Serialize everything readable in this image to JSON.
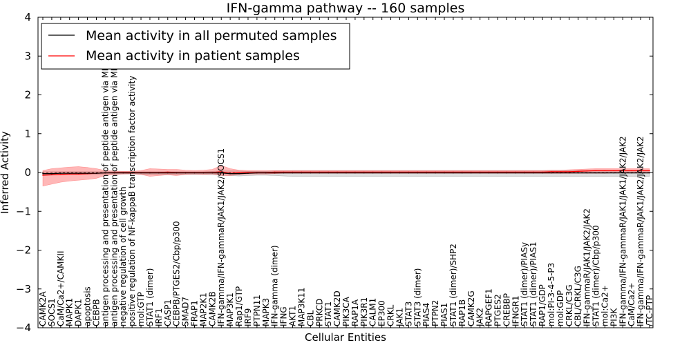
{
  "chart_data": {
    "type": "line",
    "title": "IFN-gamma pathway -- 160 samples",
    "xlabel": "Cellular Entities",
    "ylabel": "Inferred Activity",
    "ylim": [
      -4,
      4
    ],
    "yticks": [
      -4,
      -3,
      -2,
      -1,
      0,
      1,
      2,
      3,
      4
    ],
    "ytick_labels": [
      "−4",
      "−3",
      "−2",
      "−1",
      "0",
      "1",
      "2",
      "3",
      "4"
    ],
    "legend_position": "top-left",
    "categories": [
      "CAMK2A",
      "SOCS1",
      "CaM/Ca2+/CAMKII",
      "MAPK1",
      "DAPK1",
      "apoptosis",
      "CEBPB",
      "antigen processing and presentation of peptide antigen via MHC class I",
      "antigen processing and presentation of peptide antigen via MHC class II",
      "negative regulation of cell growth",
      "positive regulation of NF-kappaB transcription factor activity",
      "mol:GTP",
      "STAT1 (dimer)",
      "IRF1",
      "CASP1",
      "CEBPB/PTGES2/Cbp/p300",
      "SMAD7",
      "FRAP1",
      "MAP2K1",
      "CAMK2B",
      "IFN-gamma/IFN-gammaR/JAK1/JAK2/SOCS1",
      "MAP3K1",
      "Rap1/GTP",
      "IRF9",
      "PTPN11",
      "MAPK3",
      "IFN-gamma (dimer)",
      "IFNG",
      "AKT1",
      "MAP3K11",
      "CBL",
      "PRKCD",
      "STAT1",
      "CAMK2D",
      "PIK3CA",
      "RAP1A",
      "PIK3R1",
      "CALM1",
      "EP300",
      "CRKL",
      "JAK1",
      "STAT3",
      "STAT3 (dimer)",
      "PIAS4",
      "PTPN2",
      "PIAS1",
      "STAT1 (dimer)/SHP2",
      "RAP1B",
      "CAMK2G",
      "JAK2",
      "RAPGEF1",
      "PTGES2",
      "CREBBP",
      "IFNGR1",
      "STAT1 (dimer)/PIASy",
      "STAT1 (dimer)/PIAS1",
      "RAP1/GDP",
      "mol:PI-3-4-5-P3",
      "mol:GDP",
      "CRKL/C3G",
      "CBL/CRKL/C3G",
      "IFN-gammaR/JAK1/JAK2/JAK2",
      "STAT1 (dimer)/Cbp/p300",
      "mol:Ca2+",
      "PI3K",
      "IFN-gamma/IFN-gammaR/JAK1/JAK1/JAK2/JAK2",
      "CaM/Ca2+",
      "IFN-gamma/IFN-gammaR/JAK1/JAK2/JAK2/JAK2",
      "/TC-PTP"
    ],
    "series": [
      {
        "name": "Mean activity in all permuted samples",
        "color": "#000000",
        "values": [
          -0.03,
          -0.03,
          -0.02,
          -0.02,
          -0.02,
          -0.02,
          -0.02,
          -0.01,
          -0.01,
          -0.01,
          -0.01,
          -0.01,
          -0.01,
          -0.01,
          -0.01,
          -0.01,
          -0.01,
          -0.01,
          -0.01,
          -0.01,
          -0.01,
          -0.03,
          -0.03,
          -0.02,
          -0.01,
          -0.01,
          -0.01,
          -0.01,
          -0.01,
          -0.01,
          -0.01,
          -0.01,
          -0.01,
          -0.01,
          -0.01,
          -0.01,
          -0.01,
          -0.01,
          -0.01,
          -0.01,
          -0.01,
          -0.01,
          -0.01,
          -0.01,
          -0.01,
          -0.01,
          -0.01,
          -0.01,
          -0.01,
          -0.01,
          -0.01,
          -0.01,
          -0.01,
          -0.01,
          -0.01,
          -0.01,
          -0.01,
          -0.01,
          -0.01,
          -0.01,
          -0.01,
          -0.01,
          -0.01,
          -0.01,
          -0.01,
          -0.01,
          -0.01,
          -0.01,
          -0.01
        ],
        "band_lower": [
          -0.07,
          -0.06,
          -0.05,
          -0.05,
          -0.05,
          -0.05,
          -0.05,
          -0.04,
          -0.04,
          -0.04,
          -0.04,
          -0.05,
          -0.05,
          -0.05,
          -0.05,
          -0.05,
          -0.05,
          -0.05,
          -0.05,
          -0.06,
          -0.07,
          -0.08,
          -0.09,
          -0.08,
          -0.07,
          -0.07,
          -0.08,
          -0.09,
          -0.1,
          -0.1,
          -0.1,
          -0.1,
          -0.1,
          -0.1,
          -0.1,
          -0.1,
          -0.1,
          -0.1,
          -0.1,
          -0.1,
          -0.1,
          -0.1,
          -0.1,
          -0.1,
          -0.1,
          -0.1,
          -0.1,
          -0.1,
          -0.1,
          -0.1,
          -0.1,
          -0.1,
          -0.1,
          -0.1,
          -0.1,
          -0.1,
          -0.1,
          -0.1,
          -0.1,
          -0.1,
          -0.1,
          -0.1,
          -0.1,
          -0.1,
          -0.1,
          -0.1,
          -0.1,
          -0.1,
          -0.1
        ],
        "band_upper": [
          0.02,
          0.02,
          0.02,
          0.02,
          0.02,
          0.02,
          0.02,
          0.02,
          0.02,
          0.02,
          0.02,
          0.02,
          0.02,
          0.02,
          0.02,
          0.02,
          0.02,
          0.02,
          0.02,
          0.03,
          0.04,
          0.04,
          0.04,
          0.03,
          0.03,
          0.03,
          0.04,
          0.04,
          0.05,
          0.05,
          0.05,
          0.05,
          0.05,
          0.05,
          0.05,
          0.05,
          0.05,
          0.05,
          0.05,
          0.05,
          0.05,
          0.05,
          0.05,
          0.05,
          0.05,
          0.05,
          0.05,
          0.05,
          0.05,
          0.05,
          0.05,
          0.05,
          0.05,
          0.05,
          0.05,
          0.05,
          0.05,
          0.05,
          0.05,
          0.05,
          0.05,
          0.05,
          0.05,
          0.05,
          0.05,
          0.05,
          0.05,
          0.05,
          0.05
        ]
      },
      {
        "name": "Mean activity in patient samples",
        "color": "#ff0000",
        "values": [
          -0.07,
          -0.06,
          -0.05,
          -0.04,
          -0.04,
          -0.03,
          -0.02,
          -0.01,
          0.0,
          0.0,
          0.0,
          0.0,
          0.0,
          0.0,
          0.01,
          0.0,
          0.0,
          0.0,
          0.0,
          0.0,
          0.02,
          -0.02,
          0.0,
          0.0,
          0.0,
          0.0,
          0.01,
          0.01,
          0.01,
          0.01,
          0.01,
          0.01,
          0.01,
          0.01,
          0.01,
          0.01,
          0.01,
          0.01,
          0.01,
          0.01,
          0.01,
          0.01,
          0.01,
          0.01,
          0.01,
          0.01,
          0.01,
          0.01,
          0.01,
          0.01,
          0.01,
          0.01,
          0.01,
          0.01,
          0.01,
          0.01,
          0.01,
          0.02,
          0.02,
          0.02,
          0.03,
          0.04,
          0.05,
          0.05,
          0.05,
          0.05,
          0.05,
          0.05,
          0.05
        ],
        "band_lower": [
          -0.35,
          -0.3,
          -0.25,
          -0.22,
          -0.2,
          -0.18,
          -0.15,
          -0.08,
          -0.05,
          -0.04,
          -0.03,
          -0.05,
          -0.1,
          -0.08,
          -0.06,
          -0.08,
          -0.05,
          -0.04,
          -0.05,
          -0.04,
          -0.08,
          -0.08,
          -0.05,
          -0.04,
          -0.04,
          -0.04,
          -0.03,
          -0.02,
          -0.02,
          -0.02,
          -0.02,
          -0.02,
          -0.02,
          -0.02,
          -0.02,
          -0.02,
          -0.02,
          -0.02,
          -0.02,
          -0.02,
          -0.02,
          -0.02,
          -0.02,
          -0.02,
          -0.02,
          -0.02,
          -0.02,
          -0.02,
          -0.02,
          -0.02,
          -0.02,
          -0.02,
          -0.02,
          -0.02,
          -0.02,
          -0.02,
          -0.02,
          -0.02,
          -0.02,
          -0.02,
          -0.02,
          -0.02,
          -0.02,
          -0.02,
          -0.01,
          -0.01,
          -0.01,
          -0.01,
          -0.01
        ],
        "band_upper": [
          0.05,
          0.1,
          0.12,
          0.14,
          0.15,
          0.13,
          0.1,
          0.05,
          0.04,
          0.03,
          0.03,
          0.05,
          0.1,
          0.09,
          0.08,
          0.08,
          0.06,
          0.05,
          0.06,
          0.08,
          0.18,
          0.1,
          0.06,
          0.05,
          0.05,
          0.05,
          0.05,
          0.05,
          0.05,
          0.05,
          0.05,
          0.05,
          0.05,
          0.05,
          0.05,
          0.05,
          0.05,
          0.05,
          0.05,
          0.05,
          0.05,
          0.05,
          0.05,
          0.05,
          0.05,
          0.05,
          0.05,
          0.05,
          0.05,
          0.05,
          0.05,
          0.05,
          0.05,
          0.05,
          0.05,
          0.05,
          0.05,
          0.06,
          0.06,
          0.07,
          0.08,
          0.09,
          0.1,
          0.1,
          0.1,
          0.1,
          0.1,
          0.1,
          0.1
        ]
      }
    ]
  }
}
